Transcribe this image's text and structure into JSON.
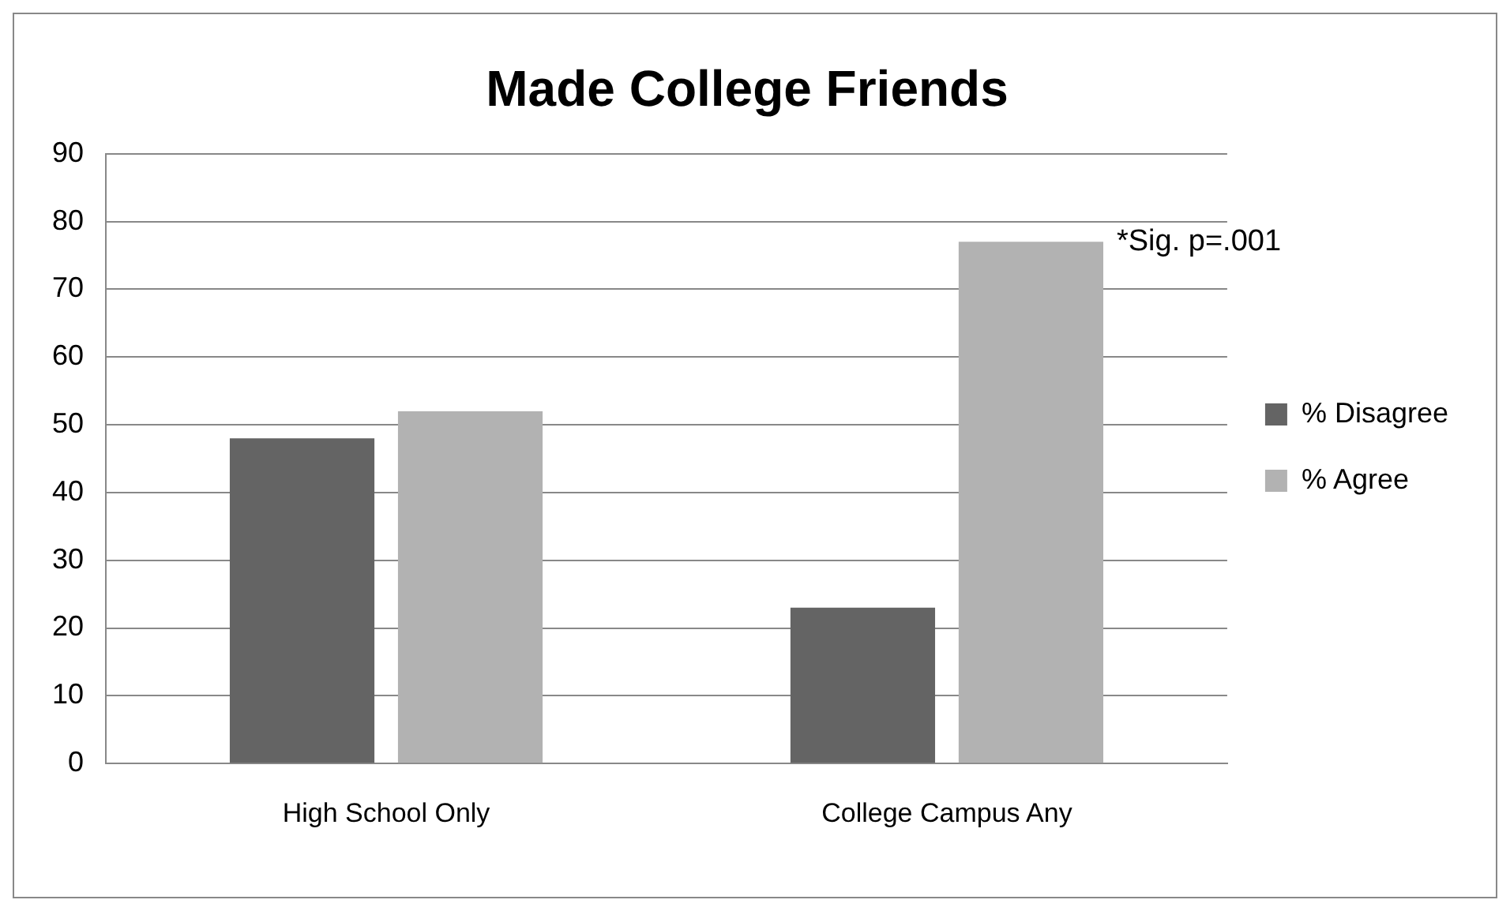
{
  "chart_data": {
    "type": "bar",
    "title": "Made College Friends",
    "categories": [
      "High School Only",
      "College Campus Any"
    ],
    "series": [
      {
        "name": "% Disagree",
        "color": "#646464",
        "values": [
          48,
          23
        ]
      },
      {
        "name": "% Agree",
        "color": "#b2b2b2",
        "values": [
          52,
          77
        ]
      }
    ],
    "ylim": [
      0,
      90
    ],
    "yticks": [
      0,
      10,
      20,
      30,
      40,
      50,
      60,
      70,
      80,
      90
    ],
    "grid": "y",
    "legend": "right",
    "annotations": [
      "*Sig. p=.001"
    ]
  }
}
